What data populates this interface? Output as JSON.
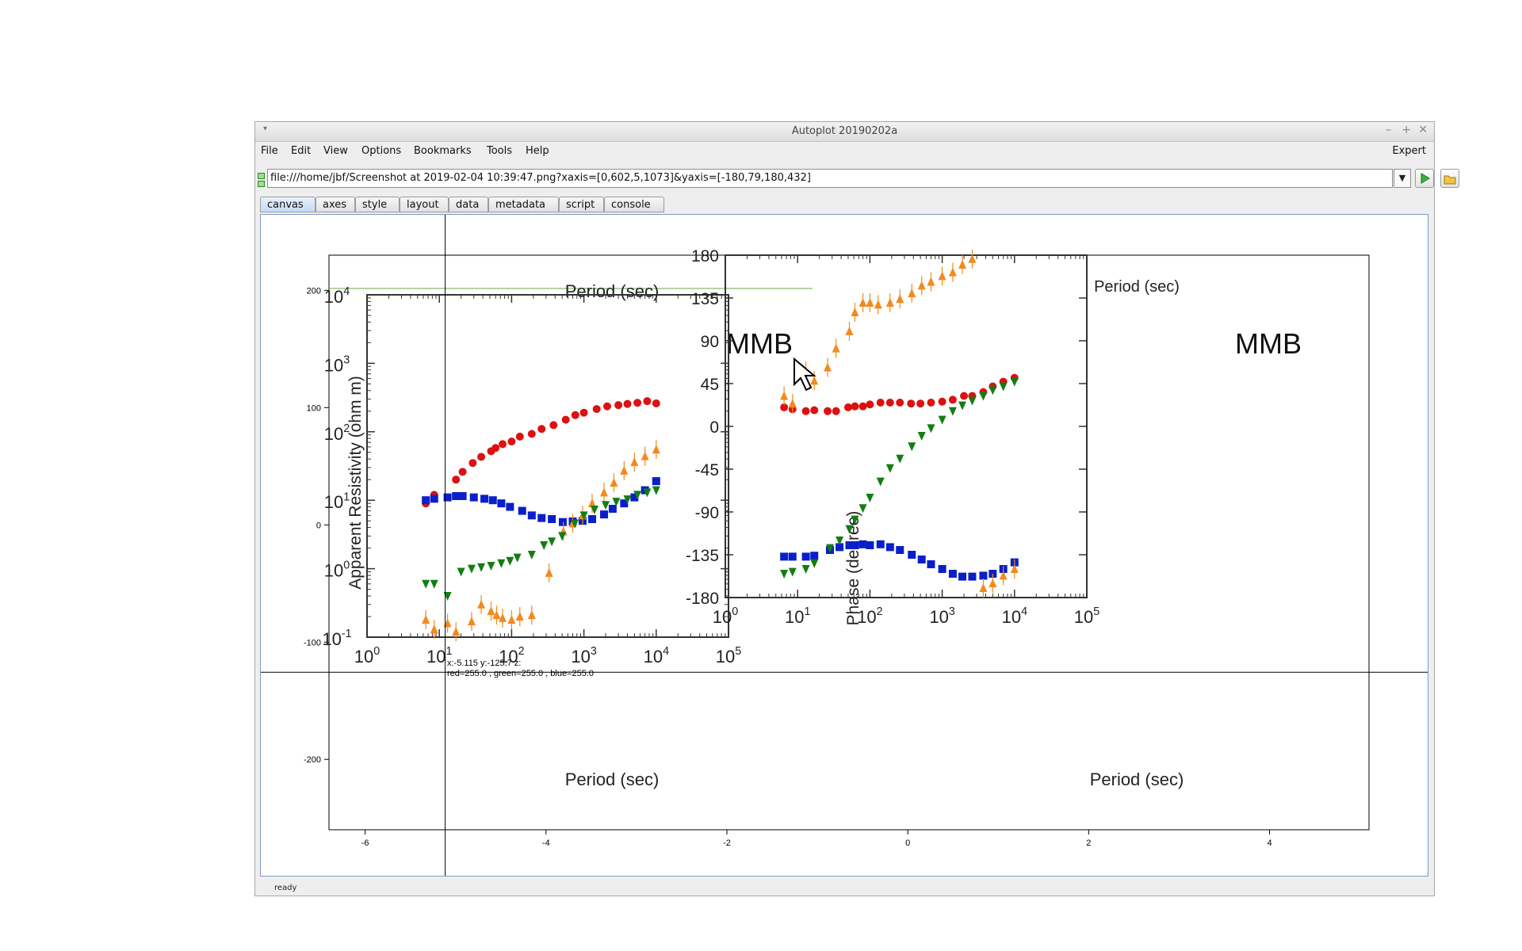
{
  "window": {
    "title": "Autoplot 20190202a",
    "status": "ready"
  },
  "menu": {
    "items": [
      "File",
      "Edit",
      "View",
      "Options",
      "Bookmarks",
      "Tools",
      "Help"
    ],
    "expert_label": "Expert"
  },
  "url": {
    "value": "file:///home/jbf/Screenshot at 2019-02-04 10:39:47.png?xaxis=[0,602,5,1073]&yaxis=[-180,79,180,432]"
  },
  "tabs": [
    "canvas",
    "axes",
    "style",
    "layout",
    "data",
    "metadata",
    "script",
    "console"
  ],
  "active_tab": "canvas",
  "readout": {
    "line1": "x:-5.115  y:-125.7  z:",
    "line2": "red=255.0 , green=255.0 , blue=255.0"
  },
  "chart_data": [
    {
      "type": "scatter",
      "title": "",
      "xlabel": "",
      "ylabel": "",
      "xlim": [
        -6.4,
        5.1
      ],
      "ylim": [
        -260,
        230
      ],
      "x_ticks": [
        -6,
        -4,
        -2,
        0,
        2,
        4
      ],
      "y_ticks": [
        200,
        100,
        0,
        -100,
        -200
      ],
      "crosshair": {
        "x": -5.115,
        "y": -125.7
      },
      "grid": false
    },
    {
      "type": "scatter",
      "title": "MMB",
      "xlabel": "Period (sec)",
      "top_label": "Period (sec)",
      "ylabel": "Apparent Resistivity (ohm m)",
      "x_scale": "log",
      "y_scale": "log",
      "xlim": [
        1,
        100000
      ],
      "ylim": [
        0.1,
        10000
      ],
      "x_ticks": [
        "10^0",
        "10^1",
        "10^2",
        "10^3",
        "10^4",
        "10^5"
      ],
      "y_ticks": [
        "10^-1",
        "10^0",
        "10^1",
        "10^2",
        "10^3",
        "10^4"
      ],
      "series": [
        {
          "color": "#dd1111",
          "marker": "circle",
          "points": [
            [
              6.5,
              9
            ],
            [
              8.5,
              12
            ],
            [
              17,
              20
            ],
            [
              21,
              26
            ],
            [
              29,
              35
            ],
            [
              38,
              43
            ],
            [
              52,
              52
            ],
            [
              60,
              58
            ],
            [
              75,
              66
            ],
            [
              100,
              72
            ],
            [
              130,
              85
            ],
            [
              190,
              93
            ],
            [
              260,
              110
            ],
            [
              380,
              125
            ],
            [
              560,
              150
            ],
            [
              760,
              175
            ],
            [
              1000,
              190
            ],
            [
              1500,
              215
            ],
            [
              2100,
              235
            ],
            [
              3000,
              245
            ],
            [
              4000,
              255
            ],
            [
              5500,
              265
            ],
            [
              7500,
              280
            ],
            [
              10000,
              260
            ]
          ]
        },
        {
          "color": "#0b1fc9",
          "marker": "square",
          "points": [
            [
              6.5,
              10
            ],
            [
              8.5,
              10.5
            ],
            [
              13,
              11
            ],
            [
              17,
              11.5
            ],
            [
              21,
              11.5
            ],
            [
              30,
              11
            ],
            [
              42,
              10.5
            ],
            [
              55,
              10
            ],
            [
              72,
              9
            ],
            [
              95,
              8
            ],
            [
              140,
              7
            ],
            [
              190,
              6
            ],
            [
              260,
              5.5
            ],
            [
              360,
              5.3
            ],
            [
              510,
              4.8
            ],
            [
              700,
              4.9
            ],
            [
              960,
              5
            ],
            [
              1300,
              5.3
            ],
            [
              1900,
              6.2
            ],
            [
              2500,
              7.5
            ],
            [
              3600,
              9
            ],
            [
              5000,
              11
            ],
            [
              7000,
              14
            ],
            [
              10000,
              19
            ]
          ]
        },
        {
          "color": "#f28a1e",
          "marker": "triangle",
          "points": [
            [
              6.5,
              0.18
            ],
            [
              8.5,
              0.13
            ],
            [
              13,
              0.16
            ],
            [
              17,
              0.12
            ],
            [
              28,
              0.17
            ],
            [
              38,
              0.3
            ],
            [
              52,
              0.24
            ],
            [
              62,
              0.21
            ],
            [
              75,
              0.19
            ],
            [
              100,
              0.18
            ],
            [
              130,
              0.2
            ],
            [
              190,
              0.21
            ],
            [
              330,
              0.87
            ],
            [
              520,
              3.5
            ],
            [
              700,
              4.6
            ],
            [
              960,
              6
            ],
            [
              1300,
              9
            ],
            [
              1900,
              13
            ],
            [
              2600,
              18
            ],
            [
              3600,
              27
            ],
            [
              5000,
              36
            ],
            [
              7000,
              44
            ],
            [
              10000,
              55
            ]
          ]
        },
        {
          "color": "#137d13",
          "marker": "triangle-down",
          "points": [
            [
              6.5,
              0.6
            ],
            [
              8.5,
              0.6
            ],
            [
              13,
              0.4
            ],
            [
              20,
              0.9
            ],
            [
              28,
              1.0
            ],
            [
              38,
              1.05
            ],
            [
              52,
              1.1
            ],
            [
              72,
              1.2
            ],
            [
              95,
              1.3
            ],
            [
              120,
              1.45
            ],
            [
              190,
              1.6
            ],
            [
              280,
              2.2
            ],
            [
              360,
              2.5
            ],
            [
              500,
              3.0
            ],
            [
              750,
              4.6
            ],
            [
              1000,
              6.0
            ],
            [
              1400,
              7.3
            ],
            [
              2000,
              8.5
            ],
            [
              2800,
              9.5
            ],
            [
              4000,
              10.3
            ],
            [
              5500,
              12
            ],
            [
              7500,
              13
            ],
            [
              10000,
              14
            ]
          ]
        }
      ]
    },
    {
      "type": "scatter",
      "title": "MMB",
      "xlabel": "Period (sec)",
      "top_label": "Period (sec)",
      "ylabel": "Phase (degree)",
      "x_scale": "log",
      "xlim": [
        1,
        100000
      ],
      "ylim": [
        -180,
        180
      ],
      "x_ticks": [
        "10^0",
        "10^1",
        "10^2",
        "10^3",
        "10^4",
        "10^5"
      ],
      "y_ticks": [
        "180",
        "135",
        "90",
        "45",
        "0",
        "-45",
        "-90",
        "-135",
        "-180"
      ],
      "series": [
        {
          "color": "#dd1111",
          "marker": "circle",
          "points": [
            [
              6.5,
              20
            ],
            [
              8.5,
              18
            ],
            [
              13,
              16
            ],
            [
              17,
              17
            ],
            [
              26,
              16
            ],
            [
              34,
              16
            ],
            [
              50,
              20
            ],
            [
              62,
              21
            ],
            [
              80,
              21
            ],
            [
              100,
              23
            ],
            [
              140,
              25
            ],
            [
              190,
              25
            ],
            [
              260,
              25
            ],
            [
              370,
              24
            ],
            [
              500,
              24
            ],
            [
              700,
              25
            ],
            [
              1000,
              26
            ],
            [
              1400,
              28
            ],
            [
              2000,
              32
            ],
            [
              2600,
              32
            ],
            [
              3700,
              36
            ],
            [
              5000,
              42
            ],
            [
              7000,
              47
            ],
            [
              10000,
              51
            ]
          ]
        },
        {
          "color": "#0b1fc9",
          "marker": "square",
          "points": [
            [
              6.5,
              -137
            ],
            [
              8.5,
              -137
            ],
            [
              13,
              -137
            ],
            [
              17,
              -136
            ],
            [
              28,
              -130
            ],
            [
              38,
              -127
            ],
            [
              52,
              -125
            ],
            [
              62,
              -125
            ],
            [
              80,
              -124
            ],
            [
              100,
              -125
            ],
            [
              140,
              -124
            ],
            [
              190,
              -127
            ],
            [
              260,
              -130
            ],
            [
              380,
              -135
            ],
            [
              520,
              -140
            ],
            [
              700,
              -145
            ],
            [
              1000,
              -150
            ],
            [
              1400,
              -155
            ],
            [
              1900,
              -158
            ],
            [
              2600,
              -158
            ],
            [
              3700,
              -157
            ],
            [
              5000,
              -155
            ],
            [
              7000,
              -150
            ],
            [
              10000,
              -143
            ]
          ]
        },
        {
          "color": "#f28a1e",
          "marker": "triangle",
          "points": [
            [
              6.5,
              32
            ],
            [
              8.5,
              24
            ],
            [
              13,
              58
            ],
            [
              17,
              48
            ],
            [
              26,
              62
            ],
            [
              34,
              82
            ],
            [
              52,
              100
            ],
            [
              62,
              120
            ],
            [
              80,
              130
            ],
            [
              100,
              130
            ],
            [
              130,
              128
            ],
            [
              190,
              130
            ],
            [
              260,
              134
            ],
            [
              380,
              140
            ],
            [
              520,
              148
            ],
            [
              700,
              152
            ],
            [
              1000,
              158
            ],
            [
              1400,
              162
            ],
            [
              1900,
              170
            ],
            [
              2600,
              176
            ],
            [
              3700,
              -170
            ],
            [
              5000,
              -165
            ],
            [
              7000,
              -157
            ],
            [
              10000,
              -150
            ]
          ]
        },
        {
          "color": "#137d13",
          "marker": "triangle-down",
          "points": [
            [
              6.5,
              -155
            ],
            [
              8.5,
              -153
            ],
            [
              13,
              -150
            ],
            [
              17,
              -144
            ],
            [
              28,
              -128
            ],
            [
              38,
              -120
            ],
            [
              52,
              -108
            ],
            [
              62,
              -98
            ],
            [
              80,
              -86
            ],
            [
              100,
              -75
            ],
            [
              140,
              -58
            ],
            [
              190,
              -44
            ],
            [
              260,
              -34
            ],
            [
              380,
              -21
            ],
            [
              520,
              -10
            ],
            [
              700,
              -2
            ],
            [
              1000,
              7
            ],
            [
              1400,
              16
            ],
            [
              1900,
              22
            ],
            [
              2600,
              27
            ],
            [
              3700,
              32
            ],
            [
              5000,
              38
            ],
            [
              7000,
              42
            ],
            [
              10000,
              47
            ]
          ]
        }
      ]
    }
  ]
}
